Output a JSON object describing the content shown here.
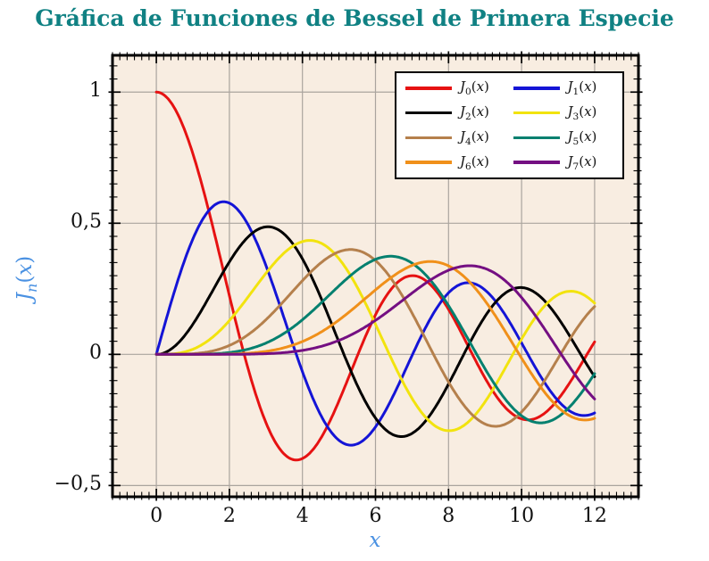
{
  "chart_data": {
    "type": "line",
    "title": "Gráfica de Funciones de Bessel de Primera Especie",
    "title_color": "#108183",
    "xlabel": "x",
    "ylabel": "J_n(x)",
    "axis_label_color": "#4a91e2",
    "plot_bg": "#f8ede1",
    "grid_color": "#aaa49e",
    "grid": "major",
    "xlim": [
      -1.2,
      13.2
    ],
    "ylim": [
      -0.543,
      1.1403
    ],
    "x_ticks": [
      0,
      2,
      4,
      6,
      8,
      10,
      12
    ],
    "x_tick_labels": [
      "0",
      "2",
      "4",
      "6",
      "8",
      "10",
      "12"
    ],
    "y_ticks": [
      1,
      0.5,
      0,
      -0.5
    ],
    "y_tick_labels": [
      "1",
      "0,5",
      "0",
      "−0,5"
    ],
    "x_minor_step": 0.2,
    "y_minor_step": 0.05,
    "legend": {
      "position": "top-right",
      "columns": 2
    },
    "sample_x": [
      0,
      0.5,
      1,
      1.5,
      2,
      2.5,
      3,
      3.5,
      4,
      4.5,
      5,
      5.5,
      6,
      6.5,
      7,
      7.5,
      8,
      8.5,
      9,
      9.5,
      10,
      10.5,
      11,
      11.5,
      12
    ],
    "series": [
      {
        "label": "J_0(x)",
        "order": 0,
        "color": "#e61212",
        "values": [
          1,
          0.9385,
          0.7652,
          0.5118,
          0.2239,
          -0.0484,
          -0.2601,
          -0.3801,
          -0.3971,
          -0.3205,
          -0.1776,
          -0.0068,
          0.1506,
          0.2601,
          0.3001,
          0.2663,
          0.1717,
          0.0419,
          -0.0903,
          -0.1939,
          -0.2459,
          -0.2366,
          -0.1712,
          -0.0677,
          0.0477
        ]
      },
      {
        "label": "J_1(x)",
        "order": 1,
        "color": "#1414d6",
        "values": [
          0,
          0.2423,
          0.4401,
          0.5579,
          0.5767,
          0.4971,
          0.3391,
          0.1374,
          -0.066,
          -0.2311,
          -0.3276,
          -0.3414,
          -0.2767,
          -0.1538,
          -0.0047,
          0.1352,
          0.2346,
          0.2731,
          0.2453,
          0.1613,
          0.0435,
          -0.0789,
          -0.1768,
          -0.2284,
          -0.2234
        ]
      },
      {
        "label": "J_2(x)",
        "order": 2,
        "color": "#000000",
        "values": [
          0,
          0.0306,
          0.1149,
          0.2321,
          0.3528,
          0.4461,
          0.4861,
          0.4586,
          0.3641,
          0.2178,
          0.0466,
          -0.1173,
          -0.2429,
          -0.3074,
          -0.3014,
          -0.2303,
          -0.113,
          0.0223,
          0.1448,
          0.2279,
          0.2546,
          0.2216,
          0.139,
          0.0279,
          -0.0849
        ]
      },
      {
        "label": "J_3(x)",
        "order": 3,
        "color": "#f2e30e",
        "values": [
          0,
          0.0026,
          0.0196,
          0.061,
          0.1289,
          0.2166,
          0.3091,
          0.3868,
          0.4302,
          0.4247,
          0.3648,
          0.2561,
          0.1148,
          -0.0353,
          -0.1676,
          -0.2581,
          -0.2911,
          -0.2626,
          -0.1809,
          -0.0653,
          0.0584,
          0.1633,
          0.2273,
          0.2381,
          0.1951
        ]
      },
      {
        "label": "J_4(x)",
        "order": 4,
        "color": "#b5804c",
        "values": [
          0,
          0.0002,
          0.0025,
          0.0118,
          0.034,
          0.0738,
          0.132,
          0.2044,
          0.2811,
          0.3484,
          0.3912,
          0.3967,
          0.3576,
          0.2748,
          0.1578,
          0.0238,
          -0.1054,
          -0.2077,
          -0.2655,
          -0.2691,
          -0.2196,
          -0.1283,
          -0.015,
          0.0963,
          0.1825
        ]
      },
      {
        "label": "J_5(x)",
        "order": 5,
        "color": "#04806f",
        "values": [
          0,
          0,
          0.0002,
          0.0018,
          0.007,
          0.0195,
          0.043,
          0.0804,
          0.1321,
          0.1947,
          0.2611,
          0.3209,
          0.3621,
          0.3736,
          0.3479,
          0.2836,
          0.1858,
          0.0671,
          -0.055,
          -0.1613,
          -0.2341,
          -0.2611,
          -0.2383,
          -0.1711,
          -0.0735
        ]
      },
      {
        "label": "J_6(x)",
        "order": 6,
        "color": "#f0901a",
        "values": [
          0,
          0,
          0,
          0.0002,
          0.0012,
          0.0042,
          0.0114,
          0.0254,
          0.0491,
          0.0843,
          0.131,
          0.1868,
          0.2458,
          0.2999,
          0.3392,
          0.3541,
          0.3376,
          0.2867,
          0.2043,
          0.0993,
          -0.0145,
          -0.1203,
          -0.2016,
          -0.2451,
          -0.2437
        ]
      },
      {
        "label": "J_7(x)",
        "order": 7,
        "color": "#740f82",
        "values": [
          0,
          0,
          0,
          0,
          0.0002,
          0.0008,
          0.0025,
          0.0065,
          0.0152,
          0.03,
          0.0534,
          0.0866,
          0.1296,
          0.1801,
          0.2336,
          0.2832,
          0.3206,
          0.3376,
          0.3275,
          0.2868,
          0.2167,
          0.124,
          0.0184,
          -0.0846,
          -0.1703
        ]
      }
    ]
  }
}
